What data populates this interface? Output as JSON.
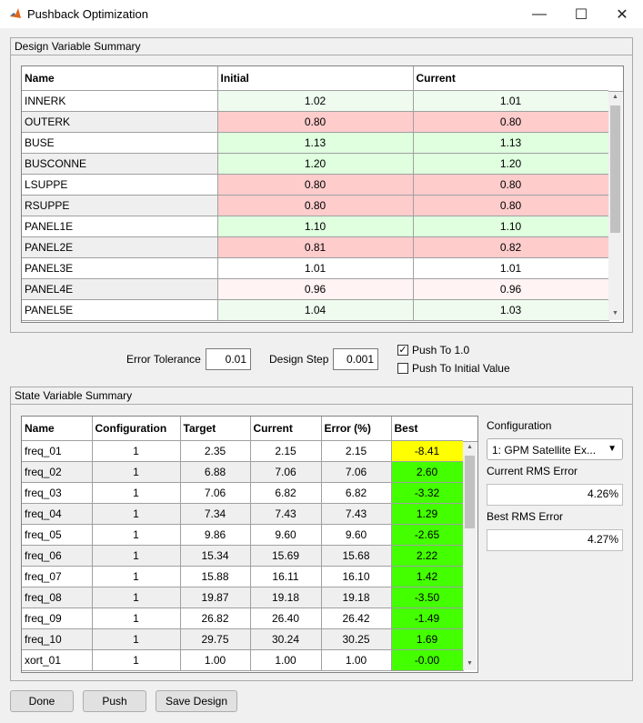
{
  "window": {
    "title": "Pushback Optimization",
    "minimize": "—",
    "maximize": "☐",
    "close": "✕"
  },
  "colors": {
    "green_light": "#eefbee",
    "green": "#dfffdf",
    "pink_light": "#fff3f3",
    "pink": "#ffcccc",
    "white": "#ffffff",
    "gray_row": "#efefef",
    "yellow": "#ffff00",
    "bright_green": "#44ff00"
  },
  "design_panel": {
    "title": "Design Variable Summary",
    "columns": [
      "Name",
      "Initial",
      "Current"
    ],
    "rows": [
      {
        "name": "INNERK",
        "initial": "1.02",
        "current": "1.01",
        "name_bg": "white",
        "bg": "green_light"
      },
      {
        "name": "OUTERK",
        "initial": "0.80",
        "current": "0.80",
        "name_bg": "gray_row",
        "bg": "pink"
      },
      {
        "name": "BUSE",
        "initial": "1.13",
        "current": "1.13",
        "name_bg": "white",
        "bg": "green"
      },
      {
        "name": "BUSCONNE",
        "initial": "1.20",
        "current": "1.20",
        "name_bg": "gray_row",
        "bg": "green"
      },
      {
        "name": "LSUPPE",
        "initial": "0.80",
        "current": "0.80",
        "name_bg": "white",
        "bg": "pink"
      },
      {
        "name": "RSUPPE",
        "initial": "0.80",
        "current": "0.80",
        "name_bg": "gray_row",
        "bg": "pink"
      },
      {
        "name": "PANEL1E",
        "initial": "1.10",
        "current": "1.10",
        "name_bg": "white",
        "bg": "green"
      },
      {
        "name": "PANEL2E",
        "initial": "0.81",
        "current": "0.82",
        "name_bg": "gray_row",
        "bg": "pink"
      },
      {
        "name": "PANEL3E",
        "initial": "1.01",
        "current": "1.01",
        "name_bg": "white",
        "bg": "white"
      },
      {
        "name": "PANEL4E",
        "initial": "0.96",
        "current": "0.96",
        "name_bg": "gray_row",
        "bg": "pink_light"
      },
      {
        "name": "PANEL5E",
        "initial": "1.04",
        "current": "1.03",
        "name_bg": "white",
        "bg": "green_light"
      }
    ],
    "scroll_up": "▲",
    "scroll_down": "▼"
  },
  "controls": {
    "error_tolerance_label": "Error Tolerance",
    "error_tolerance_value": "0.01",
    "design_step_label": "Design Step",
    "design_step_value": "0.001",
    "push_to_one_label": "Push To 1.0",
    "push_to_one_checked": true,
    "push_to_initial_label": "Push To Initial Value",
    "push_to_initial_checked": false,
    "check_mark": "✓"
  },
  "state_panel": {
    "title": "State Variable Summary",
    "columns": [
      "Name",
      "Configuration",
      "Target",
      "Current",
      "Error (%)",
      "Best"
    ],
    "rows": [
      {
        "name": "freq_01",
        "config": "1",
        "target": "2.35",
        "current": "2.15",
        "error": "2.15",
        "best": "-8.41",
        "best_bg": "yellow",
        "name_bg": "white"
      },
      {
        "name": "freq_02",
        "config": "1",
        "target": "6.88",
        "current": "7.06",
        "error": "7.06",
        "best": "2.60",
        "best_bg": "bright_green",
        "name_bg": "gray_row"
      },
      {
        "name": "freq_03",
        "config": "1",
        "target": "7.06",
        "current": "6.82",
        "error": "6.82",
        "best": "-3.32",
        "best_bg": "bright_green",
        "name_bg": "white"
      },
      {
        "name": "freq_04",
        "config": "1",
        "target": "7.34",
        "current": "7.43",
        "error": "7.43",
        "best": "1.29",
        "best_bg": "bright_green",
        "name_bg": "gray_row"
      },
      {
        "name": "freq_05",
        "config": "1",
        "target": "9.86",
        "current": "9.60",
        "error": "9.60",
        "best": "-2.65",
        "best_bg": "bright_green",
        "name_bg": "white"
      },
      {
        "name": "freq_06",
        "config": "1",
        "target": "15.34",
        "current": "15.69",
        "error": "15.68",
        "best": "2.22",
        "best_bg": "bright_green",
        "name_bg": "gray_row"
      },
      {
        "name": "freq_07",
        "config": "1",
        "target": "15.88",
        "current": "16.11",
        "error": "16.10",
        "best": "1.42",
        "best_bg": "bright_green",
        "name_bg": "white"
      },
      {
        "name": "freq_08",
        "config": "1",
        "target": "19.87",
        "current": "19.18",
        "error": "19.18",
        "best": "-3.50",
        "best_bg": "bright_green",
        "name_bg": "gray_row"
      },
      {
        "name": "freq_09",
        "config": "1",
        "target": "26.82",
        "current": "26.40",
        "error": "26.42",
        "best": "-1.49",
        "best_bg": "bright_green",
        "name_bg": "white"
      },
      {
        "name": "freq_10",
        "config": "1",
        "target": "29.75",
        "current": "30.24",
        "error": "30.25",
        "best": "1.69",
        "best_bg": "bright_green",
        "name_bg": "gray_row"
      },
      {
        "name": "xort_01",
        "config": "1",
        "target": "1.00",
        "current": "1.00",
        "error": "1.00",
        "best": "-0.00",
        "best_bg": "bright_green",
        "name_bg": "white"
      }
    ],
    "scroll_up": "▲",
    "scroll_down": "▼"
  },
  "side": {
    "configuration_label": "Configuration",
    "configuration_value": "1: GPM Satellite Ex...",
    "dropdown_arrow": "▼",
    "current_rms_label": "Current RMS Error",
    "current_rms_value": "4.26%",
    "best_rms_label": "Best RMS Error",
    "best_rms_value": "4.27%"
  },
  "buttons": {
    "done": "Done",
    "push": "Push",
    "save_design": "Save Design"
  }
}
